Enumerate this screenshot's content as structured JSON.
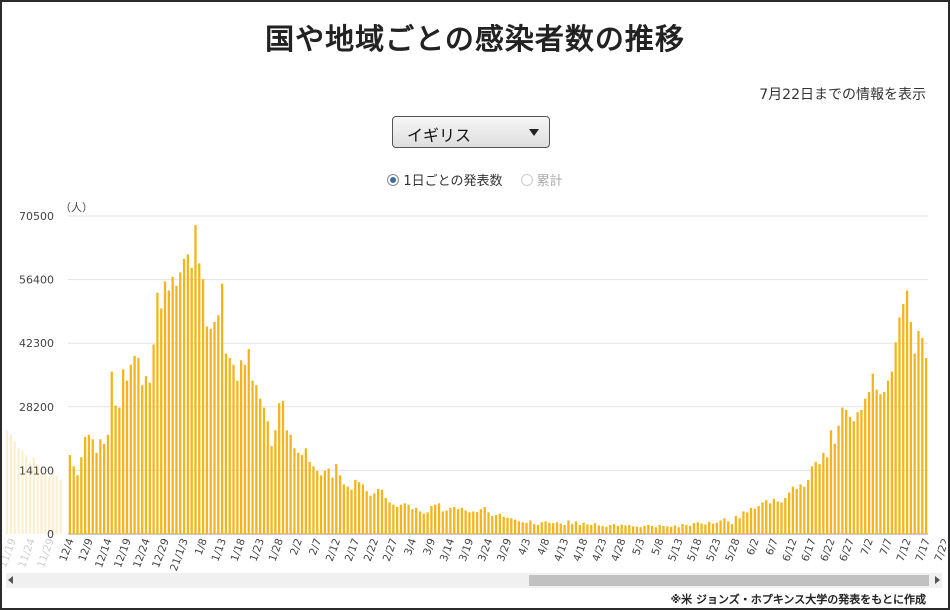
{
  "title": "国や地域ごとの感染者数の推移",
  "as_of": "7月22日までの情報を表示",
  "country_select": {
    "value": "イギリス"
  },
  "view_options": [
    {
      "label": "1日ごとの発表数",
      "selected": true
    },
    {
      "label": "累計",
      "selected": false
    }
  ],
  "source_note": "※米 ジョンズ・ホプキンス大学の発表をもとに作成",
  "chart_data": {
    "type": "bar",
    "bar_color": "#f5b41b",
    "ylabel": "（人）",
    "yticks": [
      0,
      14100,
      28200,
      42300,
      56400,
      70500
    ],
    "ylim": [
      0,
      70500
    ],
    "grid": true,
    "xtick_labels": [
      "12/4",
      "12/9",
      "12/14",
      "12/19",
      "12/24",
      "12/29",
      "21/1/3",
      "1/8",
      "1/13",
      "1/18",
      "1/23",
      "1/28",
      "2/2",
      "2/7",
      "2/12",
      "2/17",
      "2/22",
      "2/27",
      "3/4",
      "3/9",
      "3/14",
      "3/19",
      "3/24",
      "3/29",
      "4/3",
      "4/8",
      "4/13",
      "4/18",
      "4/23",
      "4/28",
      "5/3",
      "5/8",
      "5/13",
      "5/18",
      "5/23",
      "5/28",
      "6/2",
      "6/7",
      "6/12",
      "6/17",
      "6/22",
      "6/27",
      "7/2",
      "7/7",
      "7/12",
      "7/17",
      "7/22"
    ],
    "faded_xtick_labels": [
      "11/19",
      "11/24",
      "11/29"
    ],
    "faded_values": [
      23000,
      22000,
      20500,
      19000,
      18500,
      17500,
      16000,
      17000,
      15500,
      14000,
      13500,
      12500,
      14500,
      13000,
      12000
    ],
    "values": [
      17500,
      15000,
      13000,
      17000,
      21500,
      22000,
      21000,
      18000,
      21000,
      20000,
      22000,
      36000,
      28500,
      28000,
      36500,
      34000,
      37500,
      39500,
      39000,
      33000,
      35000,
      33500,
      42000,
      53500,
      50000,
      56000,
      54000,
      57000,
      55000,
      58000,
      61000,
      62000,
      59000,
      68500,
      60000,
      56500,
      46000,
      45500,
      47000,
      48500,
      55500,
      40000,
      39000,
      37500,
      34000,
      38500,
      37500,
      41000,
      34000,
      33000,
      30000,
      28000,
      25000,
      19500,
      23000,
      29000,
      29500,
      23000,
      22000,
      19000,
      18000,
      17500,
      19000,
      16000,
      15000,
      14000,
      13000,
      14000,
      14500,
      12500,
      15500,
      13000,
      11000,
      10500,
      9800,
      12000,
      11500,
      11000,
      9500,
      8500,
      9000,
      10000,
      9800,
      8000,
      7000,
      6500,
      6000,
      6500,
      6800,
      6500,
      5500,
      5800,
      5000,
      4500,
      4800,
      6200,
      6500,
      6800,
      5000,
      5200,
      5800,
      6000,
      5500,
      5800,
      5200,
      4800,
      5000,
      4900,
      5500,
      6000,
      4800,
      4000,
      4200,
      4500,
      3800,
      3600,
      3500,
      3200,
      2800,
      2600,
      2500,
      3000,
      2200,
      2000,
      2600,
      2800,
      2500,
      2400,
      2600,
      2300,
      2000,
      3000,
      2200,
      2800,
      2000,
      2500,
      2100,
      2000,
      2400,
      1900,
      1800,
      1600,
      2000,
      2200,
      1800,
      2100,
      1900,
      2000,
      1700,
      1600,
      1500,
      1800,
      2000,
      1800,
      1500,
      2000,
      1800,
      1700,
      1600,
      1900,
      1500,
      2200,
      2000,
      1800,
      2400,
      2600,
      2300,
      2100,
      2700,
      2300,
      2500,
      3000,
      3500,
      2800,
      2200,
      4000,
      3500,
      5000,
      4800,
      5800,
      5600,
      6200,
      7000,
      7500,
      6800,
      7800,
      7200,
      7000,
      8000,
      9200,
      10500,
      10000,
      11000,
      10500,
      12000,
      15000,
      16000,
      15500,
      18000,
      17000,
      23000,
      20000,
      24000,
      28000,
      27500,
      26000,
      25000,
      27000,
      27500,
      30000,
      31500,
      35500,
      32000,
      31000,
      31500,
      34000,
      36000,
      42500,
      48000,
      51000,
      54000,
      47000,
      40000,
      45000,
      43500,
      39000
    ]
  }
}
